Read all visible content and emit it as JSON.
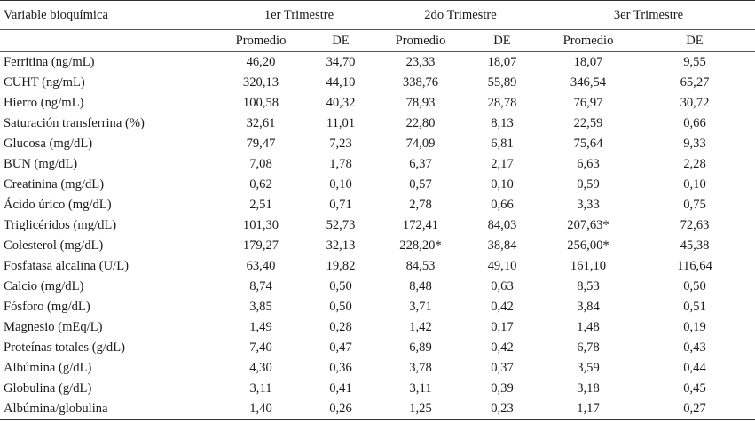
{
  "table": {
    "header": {
      "variable_label": "Variable bioquímica",
      "trimesters": [
        "1er Trimestre",
        "2do Trimestre",
        "3er Trimestre"
      ],
      "subheaders": [
        "Promedio",
        "DE",
        "Promedio",
        "DE",
        "Promedio",
        "DE"
      ]
    },
    "rows": [
      [
        "Ferritina (ng/mL)",
        "46,20",
        "34,70",
        "23,33",
        "18,07",
        "18,07",
        "9,55"
      ],
      [
        "CUHT (ng/mL)",
        "320,13",
        "44,10",
        "338,76",
        "55,89",
        "346,54",
        "65,27"
      ],
      [
        "Hierro (ng/mL)",
        "100,58",
        "40,32",
        "78,93",
        "28,78",
        "76,97",
        "30,72"
      ],
      [
        "Saturación transferrina (%)",
        "32,61",
        "11,01",
        "22,80",
        "8,13",
        "22,59",
        "0,66"
      ],
      [
        "Glucosa (mg/dL)",
        "79,47",
        "7,23",
        "74,09",
        "6,81",
        "75,64",
        "9,33"
      ],
      [
        "BUN (mg/dL)",
        "7,08",
        "1,78",
        "6,37",
        "2,17",
        "6,63",
        "2,28"
      ],
      [
        "Creatinina (mg/dL)",
        "0,62",
        "0,10",
        "0,57",
        "0,10",
        "0,59",
        "0,10"
      ],
      [
        "Ácido úrico (mg/dL)",
        "2,51",
        "0,71",
        "2,78",
        "0,66",
        "3,33",
        "0,75"
      ],
      [
        "Triglicéridos (mg/dL)",
        "101,30",
        "52,73",
        "172,41",
        "84,03",
        "207,63*",
        "72,63"
      ],
      [
        "Colesterol (mg/dL)",
        "179,27",
        "32,13",
        "228,20*",
        "38,84",
        "256,00*",
        "45,38"
      ],
      [
        "Fosfatasa alcalina (U/L)",
        "63,40",
        "19,82",
        "84,53",
        "49,10",
        "161,10",
        "116,64"
      ],
      [
        "Calcio (mg/dL)",
        "8,74",
        "0,50",
        "8,48",
        "0,63",
        "8,53",
        "0,50"
      ],
      [
        "Fósforo (mg/dL)",
        "3,85",
        "0,50",
        "3,71",
        "0,42",
        "3,84",
        "0,51"
      ],
      [
        "Magnesio (mEq/L)",
        "1,49",
        "0,28",
        "1,42",
        "0,17",
        "1,48",
        "0,19"
      ],
      [
        "Proteínas totales (g/dL)",
        "7,40",
        "0,47",
        "6,89",
        "0,42",
        "6,78",
        "0,43"
      ],
      [
        "Albúmina (g/dL)",
        "4,30",
        "0,36",
        "3,78",
        "0,37",
        "3,59",
        "0,44"
      ],
      [
        "Globulina (g/dL)",
        "3,11",
        "0,41",
        "3,11",
        "0,39",
        "3,18",
        "0,45"
      ],
      [
        "Albúmina/globulina",
        "1,40",
        "0,26",
        "1,25",
        "0,23",
        "1,17",
        "0,27"
      ]
    ]
  }
}
